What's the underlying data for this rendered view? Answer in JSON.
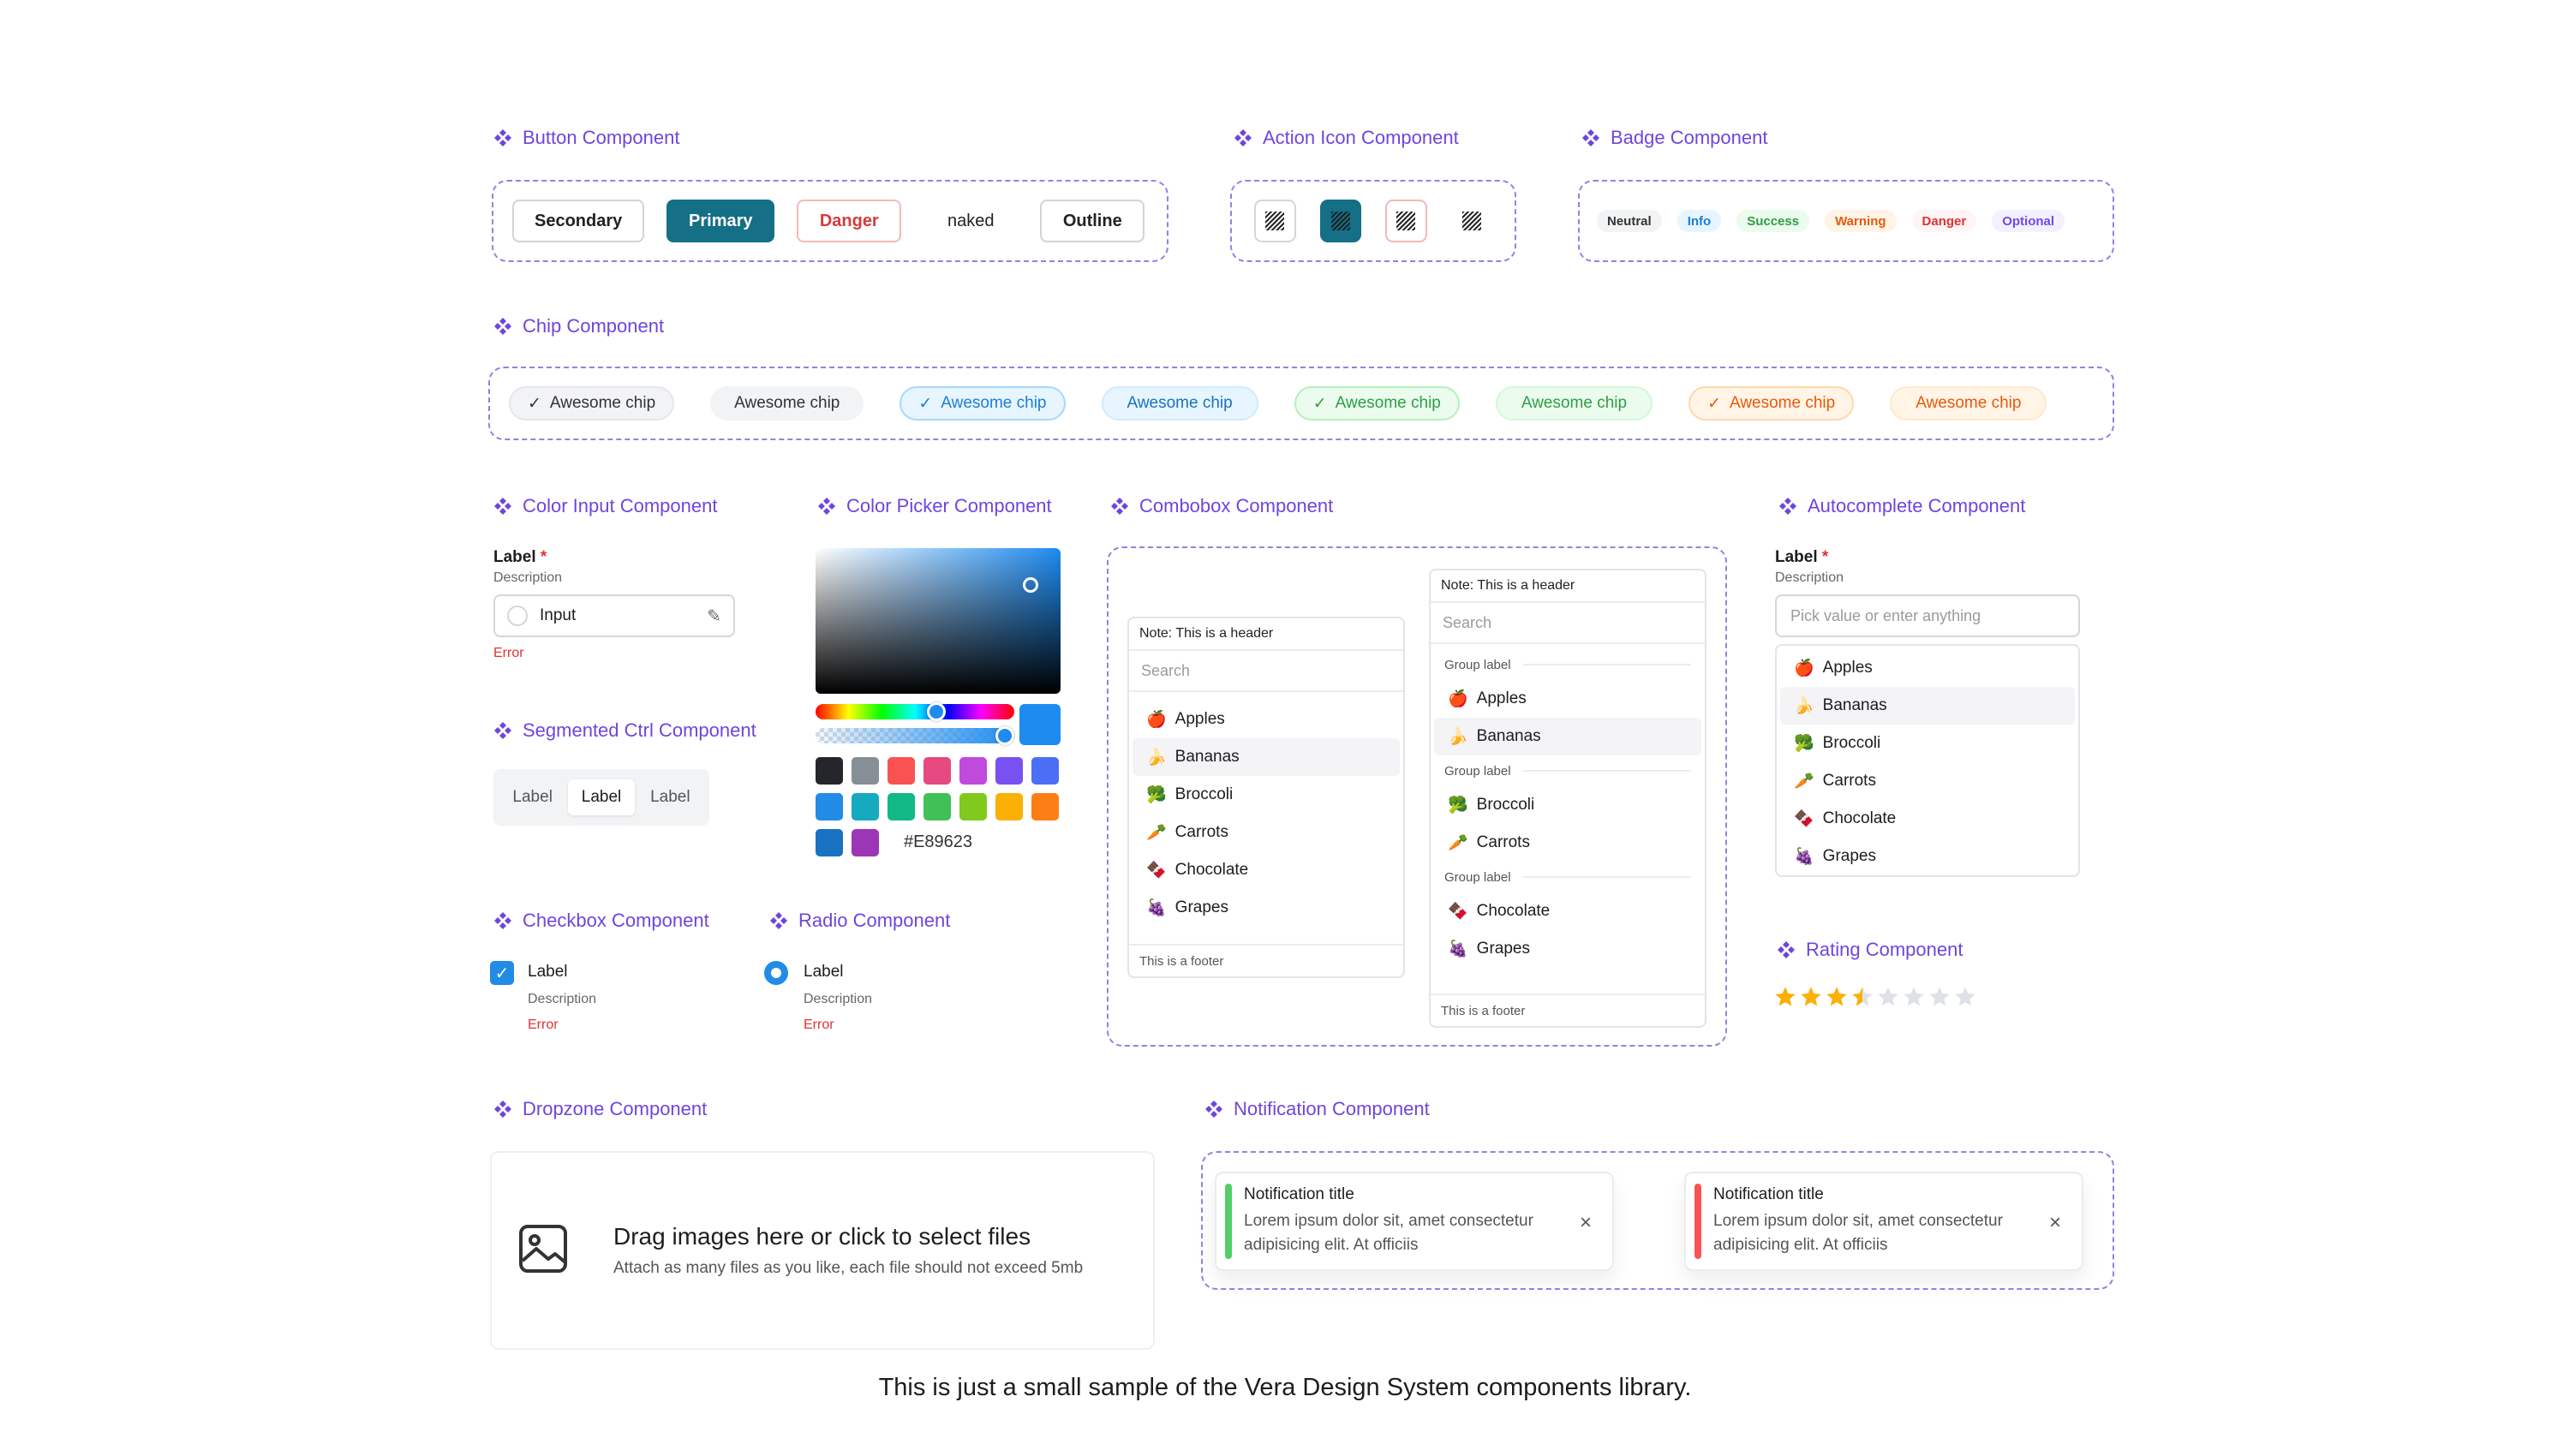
{
  "sections": {
    "button": "Button Component",
    "action_icon": "Action Icon Component",
    "badge": "Badge Component",
    "chip": "Chip Component",
    "color_input": "Color Input Component",
    "color_picker": "Color Picker Component",
    "combobox": "Combobox Component",
    "autocomplete": "Autocomplete Component",
    "segmented": "Segmented Ctrl Component",
    "checkbox": "Checkbox Component",
    "radio": "Radio Component",
    "rating": "Rating Component",
    "dropzone": "Dropzone Component",
    "notification": "Notification Component"
  },
  "buttons": [
    "Secondary",
    "Primary",
    "Danger",
    "naked",
    "Outline"
  ],
  "badges": [
    "Neutral",
    "Info",
    "Success",
    "Warning",
    "Danger",
    "Optional"
  ],
  "chip_label": "Awesome chip",
  "colors": {
    "accent": "#6f45dd",
    "primary": "#156f86",
    "danger": "#d63b3b",
    "info": "#1c7ed6",
    "success": "#2f9e44",
    "warning": "#e8590c"
  },
  "color_input": {
    "label": "Label",
    "required_mark": "*",
    "description": "Description",
    "value": "Input",
    "error": "Error"
  },
  "color_picker": {
    "hex": "#E89623",
    "swatches": [
      "#25262b",
      "#868e96",
      "#fa5252",
      "#e64980",
      "#be4bdb",
      "#7950f2",
      "#4c6ef5",
      "#228be6",
      "#15aabf",
      "#12b886",
      "#40c057",
      "#82c91e",
      "#fab005",
      "#fd7e14",
      "#1971c2",
      "#9c36b5"
    ]
  },
  "segmented": [
    "Label",
    "Label",
    "Label"
  ],
  "checkbox": {
    "label": "Label",
    "description": "Description",
    "error": "Error"
  },
  "radio": {
    "label": "Label",
    "description": "Description",
    "error": "Error"
  },
  "combobox": {
    "header": "Note: This is a header",
    "search_placeholder": "Search",
    "footer": "This is a footer",
    "group_label": "Group label",
    "items": [
      "Apples",
      "Bananas",
      "Broccoli",
      "Carrots",
      "Chocolate",
      "Grapes"
    ]
  },
  "autocomplete": {
    "label": "Label",
    "required_mark": "*",
    "description": "Description",
    "placeholder": "Pick value or enter anything",
    "items": [
      "Apples",
      "Bananas",
      "Broccoli",
      "Carrots",
      "Chocolate",
      "Grapes"
    ]
  },
  "rating": {
    "value": 3.5,
    "max": 8
  },
  "dropzone": {
    "title": "Drag images here or click to select files",
    "subtitle": "Attach as many files as you like, each file should not exceed 5mb"
  },
  "notifications": [
    {
      "title": "Notification title",
      "body": "Lorem ipsum dolor sit, amet consectetur adipisicing elit. At officiis",
      "color": "#51cf66"
    },
    {
      "title": "Notification title",
      "body": "Lorem ipsum dolor sit, amet consectetur adipisicing elit. At officiis",
      "color": "#fa5252"
    }
  ],
  "footer_text": "This is just a small sample of the Vera Design System components library."
}
